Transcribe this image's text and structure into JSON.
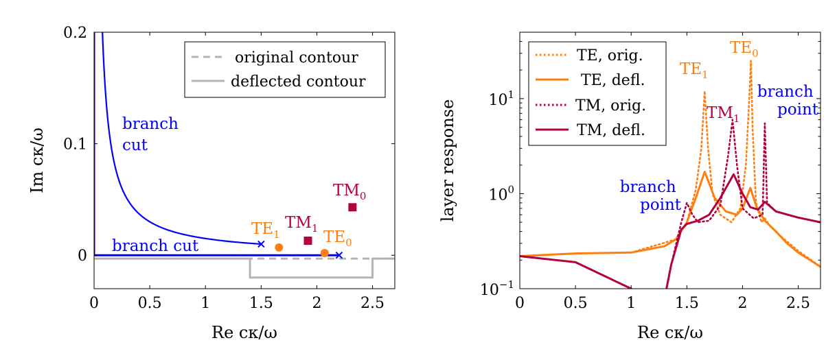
{
  "chart_data": [
    {
      "type": "line",
      "xlabel": "Re cκ/ω",
      "ylabel": "Im cκ/ω",
      "xlim": [
        0,
        2.7
      ],
      "ylim": [
        -0.03,
        0.2
      ],
      "x_ticks": [
        "0",
        "0.5",
        "1",
        "1.5",
        "2",
        "2.5"
      ],
      "y_ticks": [
        "0",
        "0.1",
        "0.2"
      ],
      "legend_position": "top-right",
      "colors": {
        "branch": "#0000ff",
        "contour": "#b3b3b3",
        "te": "#ff7f0e",
        "tm": "#b3003f"
      },
      "series": [
        {
          "name": "original contour",
          "style": "dashed",
          "x": [
            0,
            2.7
          ],
          "y": [
            -0.003,
            -0.003
          ]
        },
        {
          "name": "deflected contour",
          "style": "solid",
          "x": [
            0,
            1.4,
            1.4,
            2.5,
            2.5,
            2.7
          ],
          "y": [
            -0.003,
            -0.003,
            -0.02,
            -0.02,
            -0.003,
            -0.003
          ]
        }
      ],
      "branch_cuts": [
        {
          "label": "branch cut",
          "x": [
            0,
            0
          ],
          "y": [
            0,
            0.2
          ]
        },
        {
          "label": "branch cut",
          "x": [
            0,
            2.2
          ],
          "y": [
            0,
            0
          ]
        },
        {
          "label_lines": [
            "branch",
            "cut"
          ],
          "shape": "hyperbola",
          "k": 0.015,
          "x_from": 0.075,
          "x_to": 1.5
        }
      ],
      "branch_points": [
        {
          "x": 1.5,
          "y": 0.01
        },
        {
          "x": 2.2,
          "y": 0.0
        }
      ],
      "poles": [
        {
          "name": "TE",
          "sub": "0",
          "x": 2.07,
          "y": 0.002,
          "marker": "circle",
          "color": "#ff7f0e"
        },
        {
          "name": "TE",
          "sub": "1",
          "x": 1.66,
          "y": 0.007,
          "marker": "circle",
          "color": "#ff7f0e"
        },
        {
          "name": "TM",
          "sub": "0",
          "x": 2.32,
          "y": 0.043,
          "marker": "square",
          "color": "#b3003f"
        },
        {
          "name": "TM",
          "sub": "1",
          "x": 1.92,
          "y": 0.013,
          "marker": "square",
          "color": "#b3003f"
        }
      ]
    },
    {
      "type": "line",
      "xlabel": "Re cκ/ω",
      "ylabel": "layer response",
      "xlim": [
        0,
        2.7
      ],
      "ylim": [
        0.1,
        50
      ],
      "yscale": "log",
      "x_ticks": [
        "0",
        "0.5",
        "1",
        "1.5",
        "2",
        "2.5"
      ],
      "y_ticks": [
        {
          "base": "10",
          "exp": "−1"
        },
        {
          "base": "10",
          "exp": "0"
        },
        {
          "base": "10",
          "exp": "1"
        }
      ],
      "legend_position": "top-left",
      "series": [
        {
          "name": "TE, orig.",
          "style": "dotted",
          "color": "#ff7f0e",
          "x": [
            0,
            0.5,
            1.0,
            1.4,
            1.5,
            1.58,
            1.63,
            1.66,
            1.69,
            1.73,
            1.8,
            1.9,
            1.98,
            2.03,
            2.06,
            2.075,
            2.09,
            2.12,
            2.17,
            2.2,
            2.25,
            2.35,
            2.5,
            2.7
          ],
          "y": [
            0.22,
            0.235,
            0.24,
            0.33,
            0.5,
            1.1,
            3.0,
            12.0,
            3.0,
            1.0,
            0.6,
            0.5,
            0.7,
            2.0,
            10.0,
            25.0,
            5.0,
            0.8,
            0.5,
            0.55,
            0.45,
            0.35,
            0.25,
            0.17
          ]
        },
        {
          "name": "TE, defl.",
          "style": "solid",
          "color": "#ff7f0e",
          "x": [
            0,
            0.5,
            1.0,
            1.3,
            1.4,
            1.5,
            1.58,
            1.66,
            1.75,
            1.85,
            1.95,
            2.0,
            2.07,
            2.13,
            2.2,
            2.3,
            2.4,
            2.5,
            2.7
          ],
          "y": [
            0.22,
            0.235,
            0.24,
            0.28,
            0.33,
            0.5,
            0.9,
            1.7,
            0.9,
            0.65,
            0.6,
            0.7,
            1.15,
            0.7,
            0.52,
            0.4,
            0.3,
            0.24,
            0.17
          ]
        },
        {
          "name": "TM, orig.",
          "style": "dotted",
          "color": "#b3003f",
          "x": [
            0,
            0.5,
            1.0,
            1.28,
            1.36,
            1.45,
            1.5,
            1.55,
            1.6,
            1.7,
            1.8,
            1.87,
            1.91,
            1.95,
            2.0,
            2.1,
            2.18,
            2.2,
            2.22,
            2.3,
            2.5,
            2.7
          ],
          "y": [
            0.22,
            0.19,
            0.1,
            0.06,
            0.18,
            0.5,
            0.8,
            0.6,
            0.5,
            0.52,
            0.75,
            2.5,
            6.0,
            2.0,
            0.7,
            0.55,
            0.6,
            5.5,
            0.8,
            0.65,
            0.56,
            0.5
          ]
        },
        {
          "name": "TM, defl.",
          "style": "solid",
          "color": "#b3003f",
          "x": [
            0,
            0.5,
            1.0,
            1.28,
            1.36,
            1.45,
            1.5,
            1.6,
            1.7,
            1.8,
            1.92,
            2.0,
            2.07,
            2.14,
            2.2,
            2.3,
            2.5,
            2.7
          ],
          "y": [
            0.22,
            0.19,
            0.1,
            0.06,
            0.18,
            0.42,
            0.48,
            0.52,
            0.6,
            0.9,
            1.6,
            1.0,
            0.72,
            0.68,
            0.82,
            0.65,
            0.56,
            0.5
          ]
        }
      ],
      "annotations": [
        {
          "name": "TE",
          "sub": "0",
          "color": "#ff7f0e"
        },
        {
          "name": "TE",
          "sub": "1",
          "color": "#ff7f0e"
        },
        {
          "name": "TM",
          "sub": "1",
          "color": "#b3003f"
        },
        {
          "label_lines": [
            "branch",
            "point"
          ],
          "color": "#0000ff"
        },
        {
          "label_lines": [
            "branch",
            "point"
          ],
          "color": "#0000ff"
        }
      ]
    }
  ]
}
